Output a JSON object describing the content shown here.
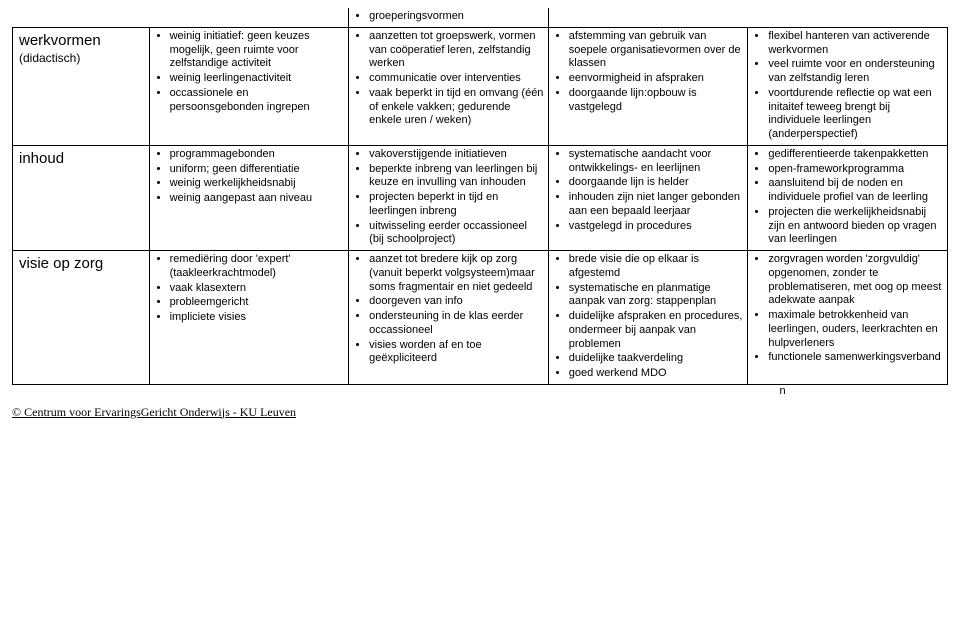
{
  "toprow": {
    "c3": "groeperingsvormen"
  },
  "rows": [
    {
      "label": "werkvormen",
      "sublabel": "(didactisch)",
      "cols": [
        [
          "weinig initiatief: geen keuzes mogelijk, geen ruimte voor zelfstandige activiteit",
          "weinig leerlingenactiviteit",
          "occassionele en persoonsgebonden ingrepen"
        ],
        [
          "aanzetten tot groepswerk, vormen van coöperatief leren, zelfstandig werken",
          "communicatie over interventies",
          "vaak beperkt in tijd en omvang (één of enkele vakken; gedurende enkele uren / weken)"
        ],
        [
          "afstemming van gebruik van soepele organisatievormen over de klassen",
          "eenvormigheid in afspraken",
          "doorgaande lijn:opbouw is vastgelegd"
        ],
        [
          "flexibel hanteren van activerende werkvormen",
          "veel ruimte voor en ondersteuning van zelfstandig leren",
          "voortdurende reflectie op wat een initaitef teweeg brengt bij individuele leerlingen (anderperspectief)"
        ]
      ]
    },
    {
      "label": "inhoud",
      "sublabel": "",
      "cols": [
        [
          "programmagebonden",
          "uniform; geen differentiatie",
          "weinig werkelijkheidsnabij",
          "weinig aangepast aan niveau"
        ],
        [
          "vakoverstijgende initiatieven",
          "beperkte inbreng van leerlingen bij keuze en invulling van inhouden",
          "projecten beperkt in tijd en leerlingen inbreng",
          "uitwisseling eerder occassioneel (bij schoolproject)"
        ],
        [
          "systematische aandacht voor ontwikkelings- en leerlijnen",
          "doorgaande lijn is helder",
          "inhouden zijn niet langer gebonden aan een bepaald leerjaar",
          "vastgelegd in procedures"
        ],
        [
          "gedifferentieerde takenpakketten",
          "open-frameworkprogramma",
          "aansluitend bij de noden en individuele profiel van de leerling",
          "projecten die werkelijkheidsnabij zijn en antwoord bieden op vragen van leerlingen"
        ]
      ]
    },
    {
      "label": "visie op zorg",
      "sublabel": "",
      "cols": [
        [
          "remediëring door 'expert' (taakleerkrachtmodel)",
          "vaak klasextern",
          "probleemgericht",
          "impliciete visies"
        ],
        [
          "aanzet tot bredere kijk op zorg (vanuit beperkt volgsysteem)maar soms fragmentair en niet gedeeld",
          "doorgeven van info",
          "ondersteuning in de klas eerder occassioneel",
          "visies worden af en toe geëxpliciteerd"
        ],
        [
          "brede visie die op elkaar is afgestemd",
          "systematische en planmatige aanpak van zorg: stappenplan",
          "duidelijke afspraken en procedures, ondermeer bij aanpak van problemen",
          "duidelijke taakverdeling",
          "goed werkend MDO"
        ],
        [
          "zorgvragen worden 'zorgvuldig' opgenomen, zonder te problematiseren, met oog op meest adekwate aanpak",
          "maximale betrokkenheid van leerlingen, ouders, leerkrachten en hulpverleners",
          "functionele samenwerkingsverband"
        ]
      ]
    }
  ],
  "trailing": "n",
  "footer": "© Centrum voor ErvaringsGericht Onderwijs - KU Leuven",
  "colwidths": [
    "13%",
    "19%",
    "19%",
    "19%",
    "19%"
  ]
}
